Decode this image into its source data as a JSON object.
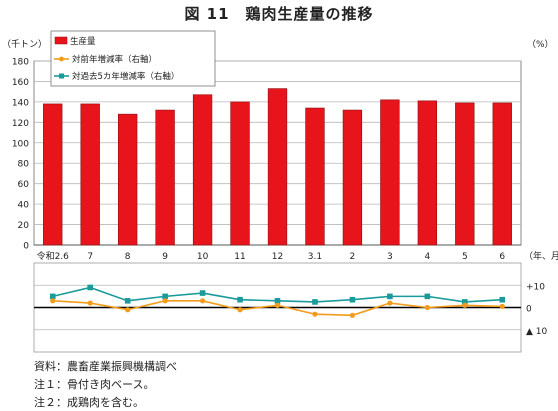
{
  "title": "図 11　鶏肉生産量の推移",
  "chart_data": {
    "type": "bar",
    "categories": [
      "令和2.6",
      "7",
      "8",
      "9",
      "10",
      "11",
      "12",
      "3.1",
      "2",
      "3",
      "4",
      "5",
      "6"
    ],
    "series": [
      {
        "name": "生産量",
        "values": [
          138,
          138,
          128,
          132,
          147,
          140,
          153,
          134,
          132,
          142,
          141,
          139,
          139
        ]
      },
      {
        "name": "対前年増減率（右軸）",
        "values": [
          3,
          2,
          -1,
          3,
          3,
          -1,
          1,
          -3,
          -3.5,
          2,
          0,
          1,
          0.5
        ]
      },
      {
        "name": "対過去5カ年増減率（右軸）",
        "values": [
          5,
          9,
          3,
          5,
          6.5,
          3.5,
          3,
          2.5,
          3.5,
          5,
          5,
          2.5,
          3.5
        ]
      }
    ],
    "ylabel_left": "（千トン）",
    "ylabel_right": "（%）",
    "xlabel": "（年、月）",
    "ylim_left": [
      0,
      180
    ],
    "yticks_left": [
      "0",
      "20",
      "40",
      "60",
      "80",
      "100",
      "120",
      "140",
      "160",
      "180"
    ],
    "ylim_right": [
      -20,
      20
    ],
    "yticks_right": [
      "+10",
      "0",
      "▲ 10"
    ],
    "colors": {
      "bar": "#e8141b",
      "bar_edge": "#8c0b10",
      "line1": "#f39c1c",
      "line2": "#1a9a9a",
      "grid": "#b8b8b8",
      "zero": "#000000"
    },
    "grid": true,
    "legend_position": "top-left"
  },
  "notes": [
    "資料：農畜産業振興機構調べ",
    "注１：骨付き肉ベース。",
    "注２：成鶏肉を含む。"
  ]
}
